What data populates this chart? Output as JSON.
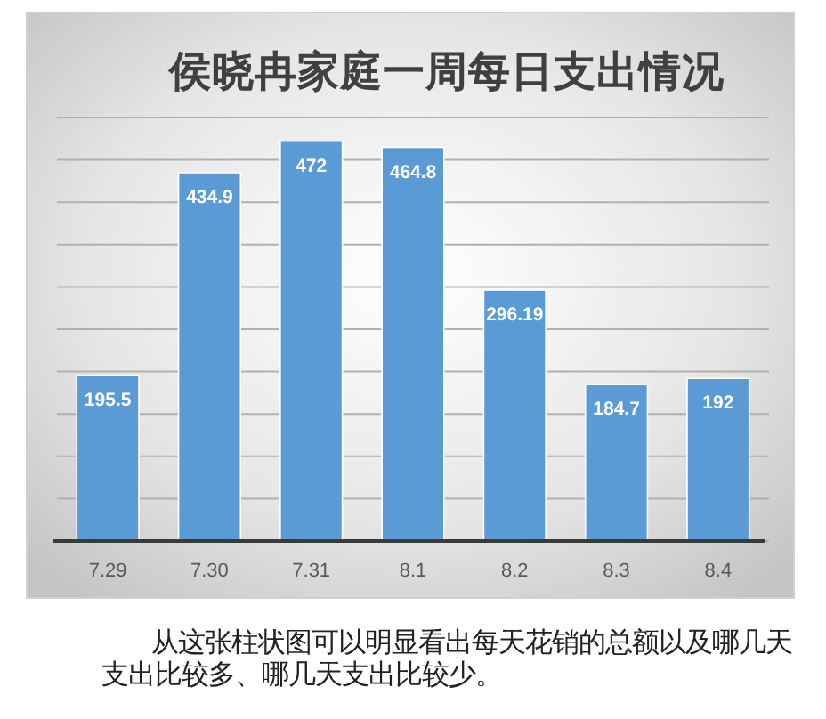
{
  "chart_data": {
    "type": "bar",
    "title": "侯晓冉家庭一周每日支出情况",
    "categories": [
      "7.29",
      "7.30",
      "7.31",
      "8.1",
      "8.2",
      "8.3",
      "8.4"
    ],
    "values": [
      195.5,
      434.9,
      472,
      464.8,
      296.19,
      184.7,
      192
    ],
    "color": "#5b9bd5",
    "ylim": [
      0,
      500
    ],
    "yticks": [
      {
        "value": 0,
        "label": null
      },
      {
        "value": 50,
        "label": null
      },
      {
        "value": 100,
        "label": null
      },
      {
        "value": 150,
        "label": null
      },
      {
        "value": 200,
        "label": null
      },
      {
        "value": 250,
        "label": null
      },
      {
        "value": 300,
        "label": null
      },
      {
        "value": 350,
        "label": null
      },
      {
        "value": 400,
        "label": null
      },
      {
        "value": 450,
        "label": null
      },
      {
        "value": 500,
        "label": null
      }
    ],
    "grid": "y",
    "tick_labels": "x",
    "data_labels": true,
    "annotations": [
      "从这张柱状图可以明显看出每天花销的总额以及哪几天支出比较多、哪几天支出比较少。"
    ]
  }
}
